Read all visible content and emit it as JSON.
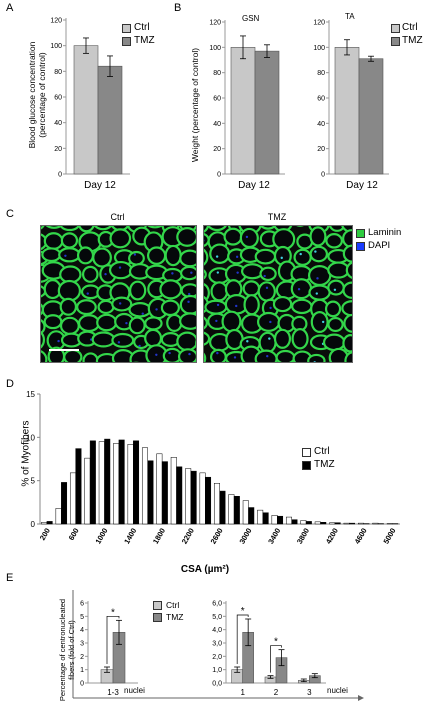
{
  "panelA": {
    "letter": "A",
    "ylabel_1": "Blood glucose concentration",
    "ylabel_2": "(percentage of control)",
    "xlabel": "Day 12",
    "legend": [
      "Ctrl",
      "TMZ"
    ]
  },
  "panelB": {
    "letter": "B",
    "ylabel": "Weight (percentage of control)",
    "gsn_title": "GSN",
    "ta_title": "TA",
    "xlabel": "Day 12",
    "legend": [
      "Ctrl",
      "TMZ"
    ]
  },
  "panelC": {
    "letter": "C",
    "ctrl_title": "Ctrl",
    "tmz_title": "TMZ",
    "legend": [
      "Laminin",
      "DAPI"
    ],
    "legend_colors": [
      "#2ecc40",
      "#1a3cff"
    ]
  },
  "panelD": {
    "letter": "D",
    "ylabel": "% of Myofibers",
    "xlabel": "CSA (µm²)",
    "legend": [
      "Ctrl",
      "TMZ"
    ]
  },
  "panelE": {
    "letter": "E",
    "ylabel_1": "Percentage of centronucleated",
    "ylabel_2": "fibers (fold of Ctrl)",
    "legend": [
      "Ctrl",
      "TMZ"
    ],
    "nuclei_label": "nuclei",
    "sig": "*"
  },
  "colors": {
    "ctrl": "#c8c8c8",
    "tmz": "#888888",
    "d_ctrl": "#ffffff",
    "d_tmz": "#000000"
  },
  "chart_data": [
    {
      "id": "A",
      "type": "bar",
      "categories": [
        "Day 12"
      ],
      "series": [
        {
          "name": "Ctrl",
          "values": [
            100
          ],
          "error": [
            6
          ]
        },
        {
          "name": "TMZ",
          "values": [
            84
          ],
          "error": [
            8
          ]
        }
      ],
      "ylabel": "Blood glucose concentration (percentage of control)",
      "ylim": [
        0,
        120
      ],
      "yticks": [
        0,
        20,
        40,
        60,
        80,
        100,
        120
      ]
    },
    {
      "id": "B-GSN",
      "type": "bar",
      "title": "GSN",
      "categories": [
        "Day 12"
      ],
      "series": [
        {
          "name": "Ctrl",
          "values": [
            100
          ],
          "error": [
            9
          ]
        },
        {
          "name": "TMZ",
          "values": [
            97
          ],
          "error": [
            5
          ]
        }
      ],
      "ylabel": "Weight (percentage of control)",
      "ylim": [
        0,
        120
      ],
      "yticks": [
        0,
        20,
        40,
        60,
        80,
        100,
        120
      ]
    },
    {
      "id": "B-TA",
      "type": "bar",
      "title": "TA",
      "categories": [
        "Day 12"
      ],
      "series": [
        {
          "name": "Ctrl",
          "values": [
            100
          ],
          "error": [
            6
          ]
        },
        {
          "name": "TMZ",
          "values": [
            91
          ],
          "error": [
            2
          ]
        }
      ],
      "ylim": [
        0,
        120
      ],
      "yticks": [
        0,
        20,
        40,
        60,
        80,
        100,
        120
      ]
    },
    {
      "id": "D",
      "type": "bar",
      "xlabel": "CSA (µm²)",
      "ylabel": "% of Myofibers",
      "ylim": [
        0,
        15
      ],
      "yticks": [
        0,
        5,
        10,
        15
      ],
      "tick_labels": [
        "200",
        "600",
        "1000",
        "1400",
        "1800",
        "2200",
        "2600",
        "3000",
        "3400",
        "3800",
        "4200",
        "4600",
        "5000"
      ],
      "categories": [
        "200",
        "400",
        "600",
        "800",
        "1000",
        "1200",
        "1400",
        "1600",
        "1800",
        "2000",
        "2200",
        "2400",
        "2600",
        "2800",
        "3000",
        "3200",
        "3400",
        "3600",
        "3800",
        "4000",
        "4200",
        "4400",
        "4600",
        "4800",
        "5000"
      ],
      "series": [
        {
          "name": "Ctrl",
          "values": [
            0.2,
            1.8,
            5.9,
            7.6,
            9.5,
            9.3,
            9.2,
            8.8,
            8.1,
            7.7,
            6.4,
            5.9,
            4.7,
            3.4,
            2.7,
            1.6,
            1.0,
            0.8,
            0.4,
            0.25,
            0.15,
            0.1,
            0.1,
            0.1,
            0.05
          ]
        },
        {
          "name": "TMZ",
          "values": [
            0.3,
            4.8,
            8.7,
            9.6,
            9.8,
            9.7,
            9.6,
            7.3,
            7.2,
            6.6,
            6.1,
            5.4,
            3.8,
            3.2,
            1.9,
            1.3,
            0.9,
            0.5,
            0.3,
            0.2,
            0.15,
            0.1,
            0.05,
            0.05,
            0.05
          ]
        }
      ]
    },
    {
      "id": "E-left",
      "type": "bar",
      "categories": [
        "1-3"
      ],
      "series": [
        {
          "name": "Ctrl",
          "values": [
            1.0
          ],
          "error": [
            0.2
          ]
        },
        {
          "name": "TMZ",
          "values": [
            3.8
          ],
          "error": [
            0.9
          ]
        }
      ],
      "ylim": [
        0,
        6
      ],
      "yticks": [
        0,
        1,
        2,
        3,
        4,
        5,
        6
      ],
      "ytick_labels": [
        "0",
        "1",
        "2",
        "3",
        "4",
        "5",
        "6"
      ],
      "significance": [
        "*"
      ]
    },
    {
      "id": "E-right",
      "type": "bar",
      "categories": [
        "1",
        "2",
        "3"
      ],
      "series": [
        {
          "name": "Ctrl",
          "values": [
            1.0,
            0.45,
            0.2
          ],
          "error": [
            0.2,
            0.1,
            0.1
          ]
        },
        {
          "name": "TMZ",
          "values": [
            3.8,
            1.9,
            0.55
          ],
          "error": [
            1.0,
            0.6,
            0.15
          ]
        }
      ],
      "ylim": [
        0,
        6
      ],
      "yticks": [
        0,
        1,
        2,
        3,
        4,
        5,
        6
      ],
      "ytick_labels": [
        "0,0",
        "1,0",
        "2,0",
        "3,0",
        "4,0",
        "5,0",
        "6,0"
      ],
      "significance": [
        "*",
        "*",
        ""
      ]
    }
  ]
}
